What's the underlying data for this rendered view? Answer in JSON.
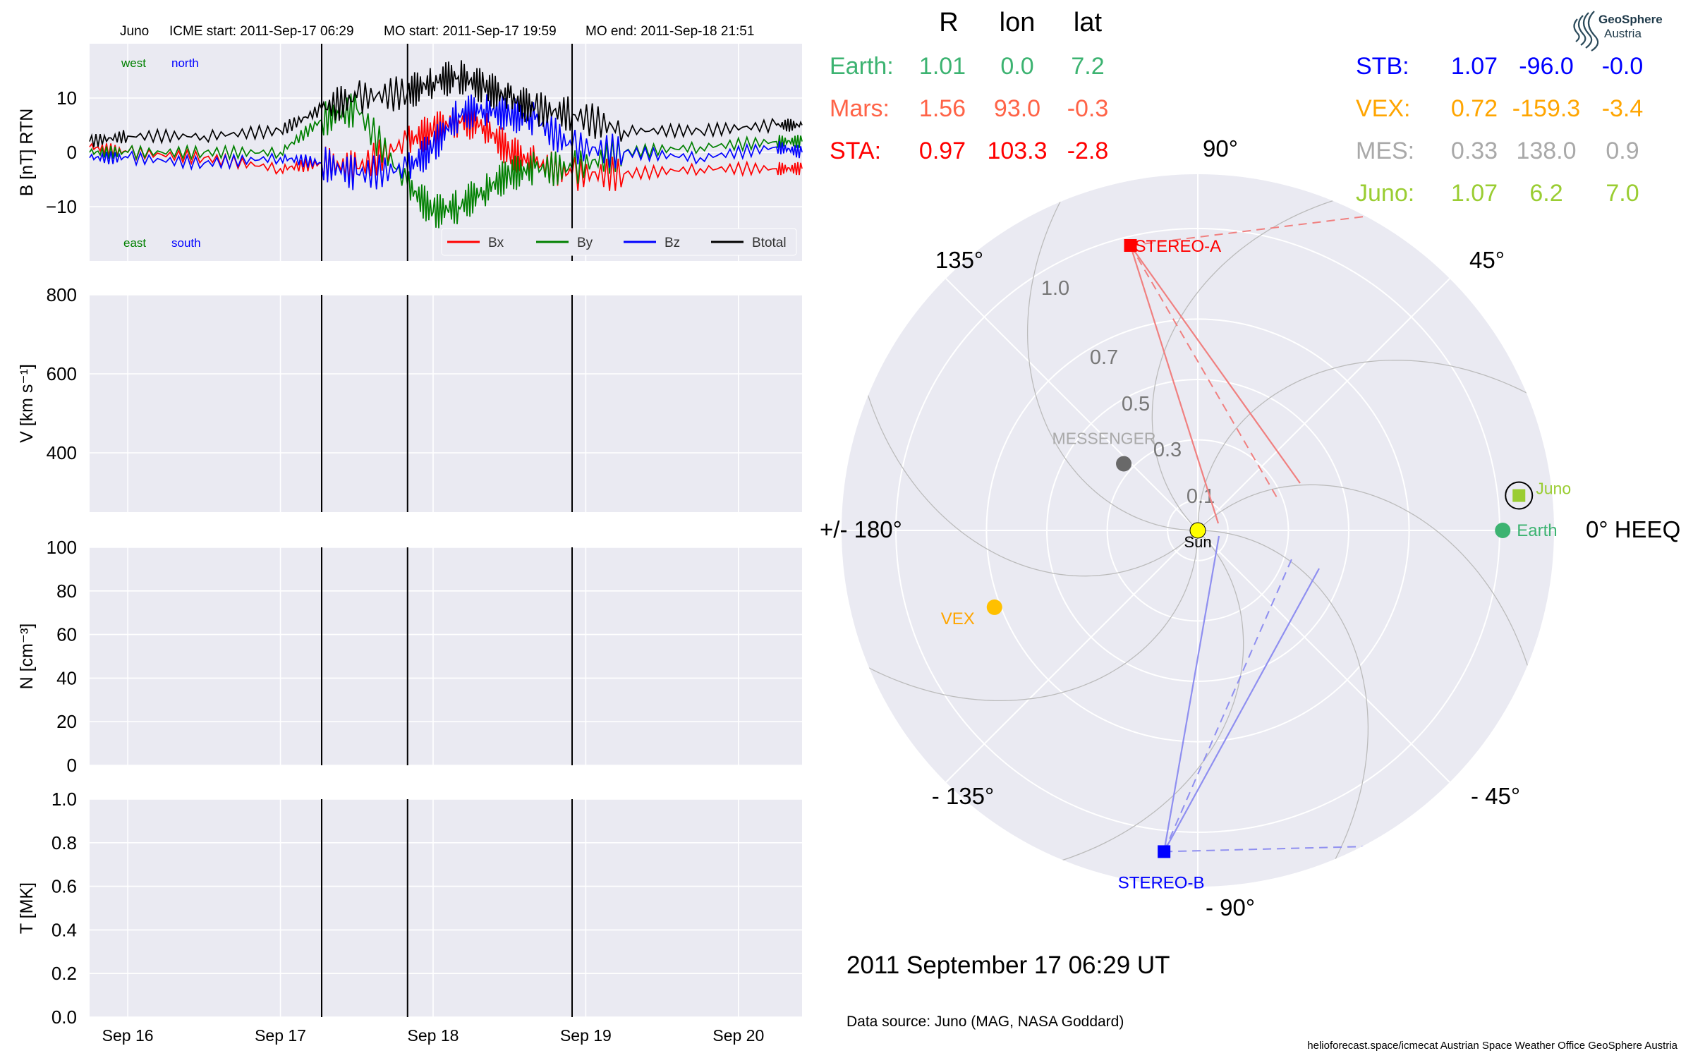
{
  "header": {
    "spacecraft": "Juno",
    "icme_start": "ICME start: 2011-Sep-17 06:29",
    "mo_start": "MO start: 2011-Sep-17 19:59",
    "mo_end": "MO end: 2011-Sep-18 21:51"
  },
  "date_label": "2011 September 17  06:29 UT",
  "data_source": "Data source: Juno (MAG, NASA Goddard)",
  "credits": "helioforecast.space/icmecat   Austrian Space Weather Office   GeoSphere Austria",
  "logo": {
    "line1": "GeoSphere",
    "line2": "Austria",
    "icon": "geosphere-logo-icon"
  },
  "position_table": {
    "headers": [
      "R",
      "lon",
      "lat"
    ],
    "left": [
      {
        "name": "Earth:",
        "R": "1.01",
        "lon": "0.0",
        "lat": "7.2",
        "color": "#3cb371"
      },
      {
        "name": "Mars:",
        "R": "1.56",
        "lon": "93.0",
        "lat": "-0.3",
        "color": "#ff6347"
      },
      {
        "name": "STA:",
        "R": "0.97",
        "lon": "103.3",
        "lat": "-2.8",
        "color": "#ff0000"
      }
    ],
    "right": [
      {
        "name": "STB:",
        "R": "1.07",
        "lon": "-96.0",
        "lat": "-0.0",
        "color": "#0000ff"
      },
      {
        "name": "VEX:",
        "R": "0.72",
        "lon": "-159.3",
        "lat": "-3.4",
        "color": "#ffa500"
      },
      {
        "name": "MES:",
        "R": "0.33",
        "lon": "138.0",
        "lat": "0.9",
        "color": "#a9a9a9"
      },
      {
        "name": "Juno:",
        "R": "1.07",
        "lon": "6.2",
        "lat": "7.0",
        "color": "#9acd32"
      }
    ]
  },
  "chart_data": [
    {
      "type": "line",
      "panel": "magnetic-field",
      "ylabel": "B [nT] RTN",
      "ylim": [
        -20,
        20
      ],
      "yticks": [
        "10",
        "0",
        "−10"
      ],
      "xlim_days": [
        "2011-09-15 18:00",
        "2011-09-20 10:00"
      ],
      "xticks": [
        "Sep 16",
        "Sep 17",
        "Sep 18",
        "Sep 19",
        "Sep 20"
      ],
      "event_lines": [
        "2011-09-17 06:29",
        "2011-09-17 19:59",
        "2011-09-18 21:51"
      ],
      "annotations": {
        "top_left": "west",
        "top_right": "north",
        "bottom_left": "east",
        "bottom_right": "south"
      },
      "legend": "lower right",
      "grid": true,
      "series": [
        {
          "name": "Bx",
          "color": "#ff0000",
          "x": [
            "2011-09-15 18:00",
            "2011-09-16 00:00",
            "2011-09-16 12:00",
            "2011-09-17 00:00",
            "2011-09-17 06:29",
            "2011-09-17 12:00",
            "2011-09-17 19:59",
            "2011-09-18 00:00",
            "2011-09-18 04:00",
            "2011-09-18 08:00",
            "2011-09-18 12:00",
            "2011-09-18 16:00",
            "2011-09-18 21:51",
            "2011-09-19 06:00",
            "2011-09-19 18:00",
            "2011-09-20 06:00",
            "2011-09-20 10:00"
          ],
          "y": [
            1,
            0,
            -1,
            -3,
            -2,
            -3,
            2,
            4,
            6,
            5,
            0,
            -2,
            -4,
            -4,
            -3,
            -3,
            -3
          ]
        },
        {
          "name": "By",
          "color": "#008000",
          "x": [
            "2011-09-15 18:00",
            "2011-09-16 00:00",
            "2011-09-16 12:00",
            "2011-09-17 00:00",
            "2011-09-17 06:29",
            "2011-09-17 12:00",
            "2011-09-17 19:59",
            "2011-09-18 00:00",
            "2011-09-18 04:00",
            "2011-09-18 08:00",
            "2011-09-18 12:00",
            "2011-09-18 16:00",
            "2011-09-18 21:51",
            "2011-09-19 06:00",
            "2011-09-19 18:00",
            "2011-09-20 06:00",
            "2011-09-20 10:00"
          ],
          "y": [
            0,
            0,
            0,
            0,
            6,
            8,
            -6,
            -11,
            -10,
            -7,
            -4,
            -3,
            -3,
            0,
            1,
            2,
            2
          ]
        },
        {
          "name": "Bz",
          "color": "#0000ff",
          "x": [
            "2011-09-15 18:00",
            "2011-09-16 00:00",
            "2011-09-16 12:00",
            "2011-09-17 00:00",
            "2011-09-17 06:29",
            "2011-09-17 12:00",
            "2011-09-17 19:59",
            "2011-09-18 00:00",
            "2011-09-18 04:00",
            "2011-09-18 08:00",
            "2011-09-18 12:00",
            "2011-09-18 16:00",
            "2011-09-18 21:51",
            "2011-09-19 06:00",
            "2011-09-19 18:00",
            "2011-09-20 06:00",
            "2011-09-20 10:00"
          ],
          "y": [
            -1,
            -1,
            -2,
            -1,
            -2,
            -4,
            -3,
            1,
            7,
            8,
            7,
            6,
            1,
            0,
            -1,
            1,
            0
          ]
        },
        {
          "name": "Btotal",
          "color": "#000000",
          "x": [
            "2011-09-15 18:00",
            "2011-09-16 00:00",
            "2011-09-16 12:00",
            "2011-09-17 00:00",
            "2011-09-17 06:29",
            "2011-09-17 12:00",
            "2011-09-17 19:59",
            "2011-09-18 00:00",
            "2011-09-18 04:00",
            "2011-09-18 08:00",
            "2011-09-18 12:00",
            "2011-09-18 16:00",
            "2011-09-18 21:51",
            "2011-09-19 06:00",
            "2011-09-19 18:00",
            "2011-09-20 06:00",
            "2011-09-20 10:00"
          ],
          "y": [
            2,
            3,
            3,
            4,
            8,
            10,
            11,
            13,
            14,
            12,
            10,
            8,
            7,
            4,
            4,
            5,
            5
          ]
        }
      ]
    },
    {
      "type": "line",
      "panel": "velocity",
      "ylabel": "V [km s⁻¹]",
      "ylim": [
        250,
        800
      ],
      "yticks": [
        "800",
        "600",
        "400"
      ],
      "xticks": [
        "Sep 16",
        "Sep 17",
        "Sep 18",
        "Sep 19",
        "Sep 20"
      ],
      "event_lines": [
        "2011-09-17 06:29",
        "2011-09-17 19:59",
        "2011-09-18 21:51"
      ],
      "grid": true,
      "series": []
    },
    {
      "type": "line",
      "panel": "density",
      "ylabel": "N [cm⁻³]",
      "ylim": [
        0,
        100
      ],
      "yticks": [
        "100",
        "80",
        "60",
        "40",
        "20",
        "0"
      ],
      "xticks": [
        "Sep 16",
        "Sep 17",
        "Sep 18",
        "Sep 19",
        "Sep 20"
      ],
      "event_lines": [
        "2011-09-17 06:29",
        "2011-09-17 19:59",
        "2011-09-18 21:51"
      ],
      "grid": true,
      "series": []
    },
    {
      "type": "line",
      "panel": "temperature",
      "ylabel": "T [MK]",
      "ylim": [
        0,
        1
      ],
      "yticks": [
        "1.0",
        "0.8",
        "0.6",
        "0.4",
        "0.2",
        "0.0"
      ],
      "xticks": [
        "Sep 16",
        "Sep 17",
        "Sep 18",
        "Sep 19",
        "Sep 20"
      ],
      "event_lines": [
        "2011-09-17 06:29",
        "2011-09-17 19:59",
        "2011-09-18 21:51"
      ],
      "grid": true,
      "series": []
    },
    {
      "type": "scatter",
      "panel": "polar-positions",
      "coordinate_system": "0° HEEQ",
      "r_max": 1.18,
      "radial_ticks": [
        "0.1",
        "0.3",
        "0.5",
        "0.7",
        "1.0"
      ],
      "angle_labels": [
        "0° HEEQ",
        "45°",
        "90°",
        "135°",
        "+/- 180°",
        "- 135°",
        "- 90°",
        "- 45°"
      ],
      "bodies": [
        {
          "name": "Sun",
          "lon": 0,
          "r": 0,
          "color": "#ffff00",
          "marker": "circle"
        },
        {
          "name": "Earth",
          "lon": 0.0,
          "r": 1.01,
          "color": "#3cb371",
          "marker": "circle"
        },
        {
          "name": "Juno",
          "lon": 6.2,
          "r": 1.07,
          "color": "#9acd32",
          "marker": "square"
        },
        {
          "name": "STEREO-A",
          "lon": 103.3,
          "r": 0.97,
          "color": "#ff0000",
          "marker": "square"
        },
        {
          "name": "STEREO-B",
          "lon": -96.0,
          "r": 1.07,
          "color": "#0000ff",
          "marker": "square"
        },
        {
          "name": "VEX",
          "lon": -159.3,
          "r": 0.72,
          "color": "#ffc000",
          "marker": "circle"
        },
        {
          "name": "MESSENGER",
          "lon": 138.0,
          "r": 0.33,
          "color": "#696969",
          "marker": "circle"
        }
      ]
    }
  ]
}
